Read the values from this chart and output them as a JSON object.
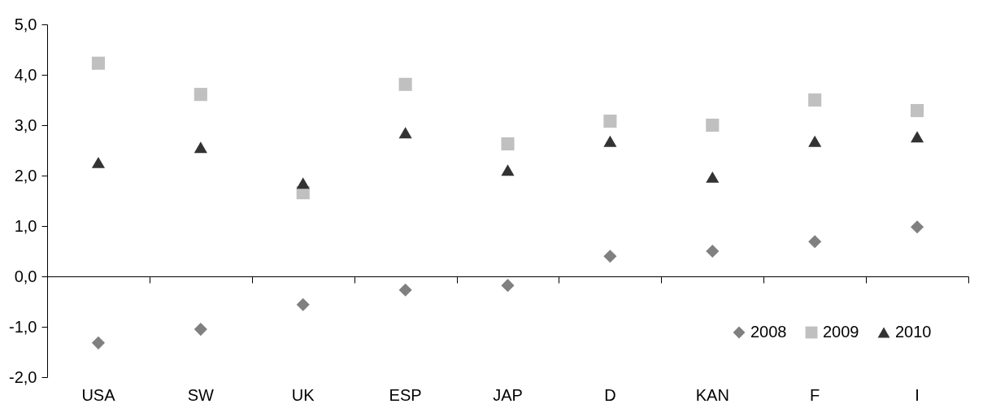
{
  "chart_data": {
    "type": "scatter",
    "categories": [
      "USA",
      "SW",
      "UK",
      "ESP",
      "JAP",
      "D",
      "KAN",
      "F",
      "I"
    ],
    "series": [
      {
        "name": "2008",
        "color": "#808080",
        "marker": "diamond",
        "values": [
          -1.32,
          -1.05,
          -0.56,
          -0.27,
          -0.18,
          0.4,
          0.5,
          0.69,
          0.98
        ]
      },
      {
        "name": "2009",
        "color": "#c0c0c0",
        "marker": "square",
        "values": [
          4.23,
          3.61,
          1.66,
          3.81,
          2.63,
          3.08,
          3.0,
          3.5,
          3.29
        ]
      },
      {
        "name": "2010",
        "color": "#333333",
        "marker": "triangle",
        "values": [
          2.26,
          2.56,
          1.85,
          2.85,
          2.11,
          2.68,
          1.97,
          2.68,
          2.77
        ]
      }
    ],
    "ylim": [
      -2,
      5
    ],
    "yticks": [
      {
        "value": -2,
        "label": "-2,0"
      },
      {
        "value": -1,
        "label": "-1,0"
      },
      {
        "value": 0,
        "label": "0,0"
      },
      {
        "value": 1,
        "label": "1,0"
      },
      {
        "value": 2,
        "label": "2,0"
      },
      {
        "value": 3,
        "label": "3,0"
      },
      {
        "value": 4,
        "label": "4,0"
      },
      {
        "value": 5,
        "label": "5,0"
      }
    ],
    "legend": "bottom right"
  }
}
